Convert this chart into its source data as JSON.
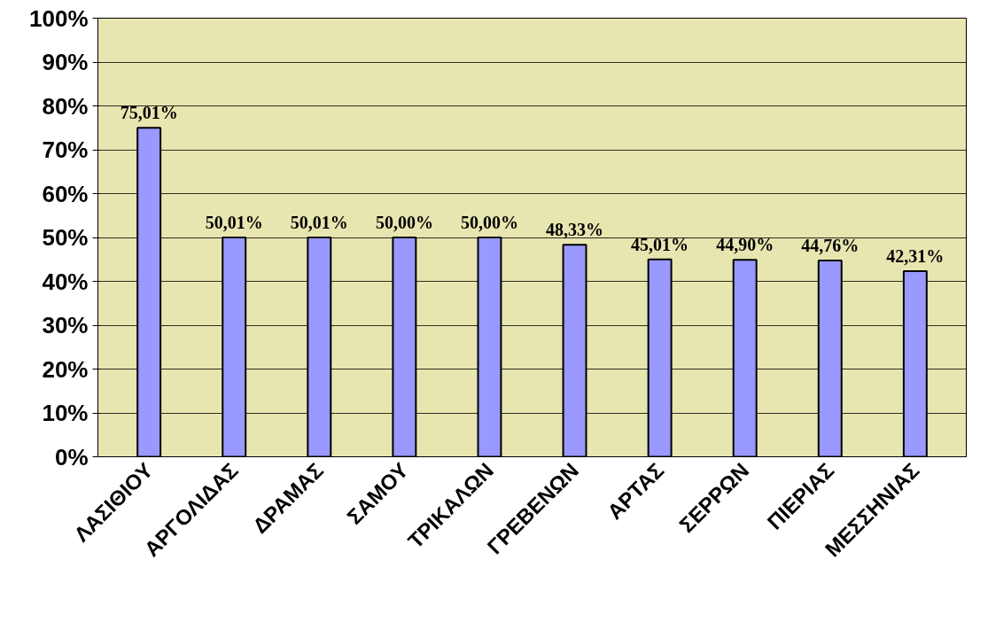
{
  "chart_data": {
    "type": "bar",
    "categories": [
      "ΛΑΣΙΘΙΟΥ",
      "ΑΡΓΟΛΙΔΑΣ",
      "ΔΡΑΜΑΣ",
      "ΣΑΜΟΥ",
      "ΤΡΙΚΑΛΩΝ",
      "ΓΡΕΒΕΝΩΝ",
      "ΑΡΤΑΣ",
      "ΣΕΡΡΩΝ",
      "ΠΙΕΡΙΑΣ",
      "ΜΕΣΣΗΝΙΑΣ"
    ],
    "values": [
      75.01,
      50.01,
      50.01,
      50.0,
      50.0,
      48.33,
      45.01,
      44.9,
      44.76,
      42.31
    ],
    "value_labels": [
      "75,01%",
      "50,01%",
      "50,01%",
      "50,00%",
      "50,00%",
      "48,33%",
      "45,01%",
      "44,90%",
      "44,76%",
      "42,31%"
    ],
    "color": "#9999ff",
    "ylim": [
      0,
      100
    ],
    "yticks": [
      {
        "value": 0,
        "label": "0%"
      },
      {
        "value": 10,
        "label": "10%"
      },
      {
        "value": 20,
        "label": "20%"
      },
      {
        "value": 30,
        "label": "30%"
      },
      {
        "value": 40,
        "label": "40%"
      },
      {
        "value": 50,
        "label": "50%"
      },
      {
        "value": 60,
        "label": "60%"
      },
      {
        "value": 70,
        "label": "70%"
      },
      {
        "value": 80,
        "label": "80%"
      },
      {
        "value": 90,
        "label": "90%"
      },
      {
        "value": 100,
        "label": "100%"
      }
    ],
    "grid": "y"
  }
}
